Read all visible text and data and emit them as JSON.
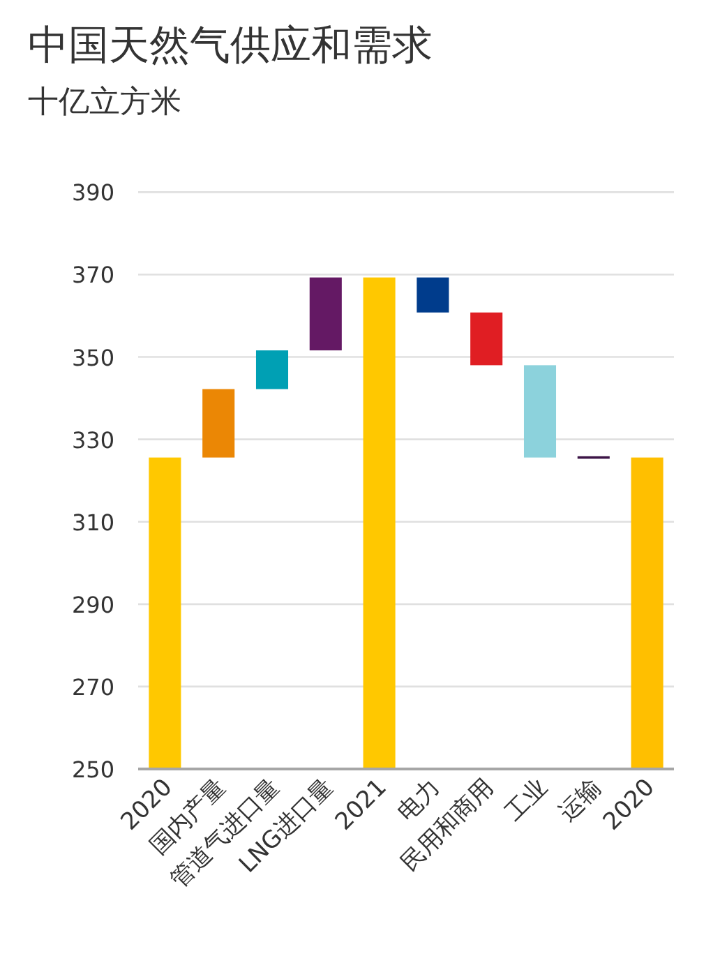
{
  "chart_data": {
    "type": "bar",
    "title": "中国天然气供应和需求",
    "subtitle": "十亿立方米",
    "categories": [
      "2020",
      "国内产量",
      "管道气进口量",
      "LNG进口量",
      "2021",
      "电力",
      "民用和商用",
      "工业",
      "运输",
      "2020"
    ],
    "values": [
      325.6,
      16.6,
      9.4,
      17.7,
      369.3,
      -8.5,
      -12.8,
      -22.4,
      -0.6,
      325.6
    ],
    "base": [
      null,
      325.6,
      342.2,
      351.6,
      null,
      369.3,
      360.8,
      348.0,
      325.9,
      null
    ],
    "colors": [
      "#ffc800",
      "#eb8705",
      "#00a0b4",
      "#641964",
      "#ffc800",
      "#003c8c",
      "#e01e23",
      "#8cd2dc",
      "#3c1446",
      "#ffbf00"
    ],
    "ylim": [
      250,
      390
    ],
    "yticks": [
      250,
      270,
      290,
      310,
      330,
      350,
      370,
      390
    ],
    "grid": "y"
  }
}
